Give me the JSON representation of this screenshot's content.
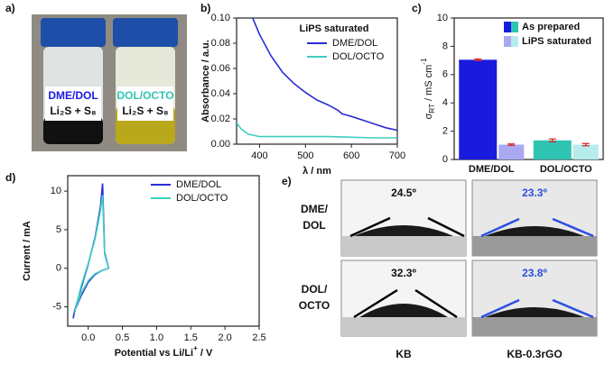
{
  "panel_labels": [
    "a)",
    "b)",
    "c)",
    "d)",
    "e)"
  ],
  "panels": {
    "a": {
      "vials": [
        {
          "solvent": "DME/DOL",
          "content": "Li₂S + S₈"
        },
        {
          "solvent": "DOL/OCTO",
          "content": "Li₂S + S₈"
        }
      ]
    },
    "e": {
      "row_labels": [
        [
          "DME/",
          "DOL"
        ],
        [
          "DOL/",
          "OCTO"
        ]
      ],
      "column_labels": [
        "KB",
        "KB-0.3rGO"
      ],
      "angles": [
        [
          "24.5º",
          "23.3º"
        ],
        [
          "32.3º",
          "23.8º"
        ]
      ]
    }
  },
  "chart_data": [
    {
      "type": "line",
      "x_label": "λ / nm",
      "y_label": "Absorbance / a.u.",
      "legend_title": "LiPS saturated",
      "xlim": [
        350,
        700
      ],
      "xticks": [
        400,
        500,
        600,
        700
      ],
      "ylim": [
        0,
        0.1
      ],
      "yticks": [
        {
          "value": 0,
          "label": "0.00"
        },
        {
          "value": 0.02,
          "label": "0.02"
        },
        {
          "value": 0.04,
          "label": "0.04"
        },
        {
          "value": 0.06,
          "label": "0.06"
        },
        {
          "value": 0.08,
          "label": "0.08"
        },
        {
          "value": 0.1,
          "label": "0.10"
        }
      ],
      "series": [
        {
          "name": "DME/DOL",
          "color": "#2b2bd8",
          "x": [
            385,
            400,
            425,
            450,
            475,
            500,
            525,
            550,
            570,
            580,
            600,
            625,
            650,
            675,
            700
          ],
          "values": [
            0.1,
            0.087,
            0.07,
            0.057,
            0.048,
            0.041,
            0.035,
            0.031,
            0.027,
            0.024,
            0.022,
            0.019,
            0.016,
            0.013,
            0.011
          ]
        },
        {
          "name": "DOL/OCTO",
          "color": "#3ecfc0",
          "x": [
            350,
            360,
            375,
            400,
            450,
            500,
            550,
            600,
            650,
            700
          ],
          "values": [
            0.017,
            0.012,
            0.008,
            0.006,
            0.006,
            0.006,
            0.006,
            0.0055,
            0.005,
            0.005
          ]
        }
      ]
    },
    {
      "type": "bar",
      "y_label": {
        "symbol": "σ",
        "subscript": "RT",
        "unit": " / mS cm",
        "superscript": "-1"
      },
      "categories": [
        "DME/DOL",
        "DOL/OCTO"
      ],
      "ylim": [
        0,
        10
      ],
      "yticks": [
        0,
        2,
        4,
        6,
        8,
        10
      ],
      "series": [
        {
          "name": "As prepared",
          "colors": [
            "#1a1adf",
            "#2fc4b2"
          ],
          "values": [
            7.05,
            1.35
          ],
          "errors": [
            0.05,
            0.1
          ]
        },
        {
          "name": "LiPS saturated",
          "colors": [
            "#a9a9f2",
            "#b6ecec"
          ],
          "values": [
            1.05,
            1.05
          ],
          "errors": [
            0.05,
            0.08
          ]
        }
      ]
    },
    {
      "type": "line",
      "x_label": "Potential vs Li/Li",
      "x_label_sup": "+",
      "x_label_tail": " / V",
      "y_label": "Current / mA",
      "xlim": [
        -0.3,
        2.5
      ],
      "xticks": [
        {
          "value": 0,
          "label": "0.0"
        },
        {
          "value": 0.5,
          "label": "0.5"
        },
        {
          "value": 1,
          "label": "1.0"
        },
        {
          "value": 1.5,
          "label": "1.5"
        },
        {
          "value": 2,
          "label": "2.0"
        },
        {
          "value": 2.5,
          "label": "2.5"
        }
      ],
      "ylim": [
        -7.5,
        12
      ],
      "yticks": [
        -5,
        0,
        5,
        10
      ],
      "series": [
        {
          "name": "DME/DOL",
          "color": "#2b2bd8",
          "x": [
            0.3,
            0.2,
            0.1,
            0.0,
            -0.1,
            -0.2,
            -0.22,
            -0.2,
            -0.1,
            0.0,
            0.1,
            0.18,
            0.21,
            0.24,
            0.3
          ],
          "values": [
            0,
            -0.3,
            -0.8,
            -1.8,
            -3.5,
            -5.5,
            -6.5,
            -5.5,
            -2.5,
            0.5,
            4,
            8,
            11,
            2,
            0
          ]
        },
        {
          "name": "DOL/OCTO",
          "color": "#3ecfc0",
          "x": [
            0.3,
            0.2,
            0.1,
            0.0,
            -0.1,
            -0.18,
            -0.2,
            -0.18,
            -0.1,
            0.0,
            0.1,
            0.18,
            0.21,
            0.24,
            0.3
          ],
          "values": [
            0,
            -0.3,
            -0.7,
            -1.6,
            -3.2,
            -5,
            -5.8,
            -5,
            -2.2,
            0.6,
            3.8,
            7.5,
            9.5,
            1.8,
            0
          ]
        }
      ]
    }
  ]
}
